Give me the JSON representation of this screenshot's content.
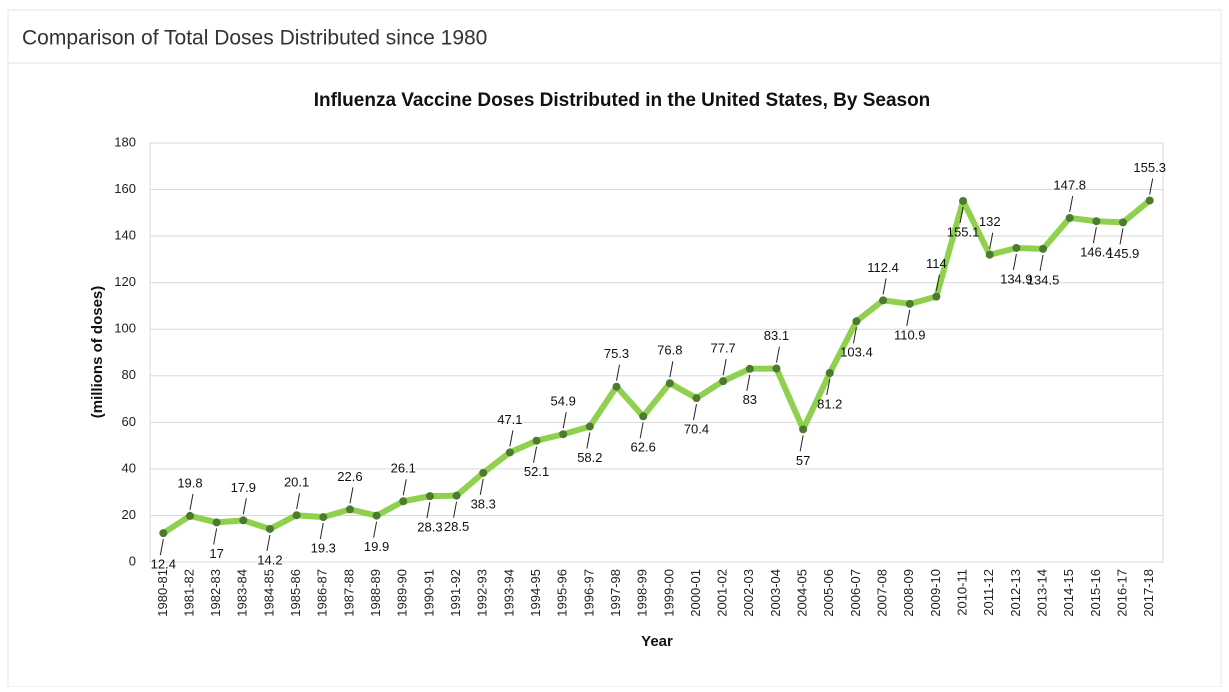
{
  "panel_title": "Comparison of Total Doses Distributed since 1980",
  "chart_data": {
    "type": "line",
    "title": "Influenza Vaccine Doses Distributed in the United States, By Season",
    "x_label": "Year",
    "y_label": "(millions of doses)",
    "categories": [
      "1980-81",
      "1981-82",
      "1982-83",
      "1983-84",
      "1984-85",
      "1985-86",
      "1986-87",
      "1987-88",
      "1988-89",
      "1989-90",
      "1990-91",
      "1991-92",
      "1992-93",
      "1993-94",
      "1994-95",
      "1995-96",
      "1996-97",
      "1997-98",
      "1998-99",
      "1999-00",
      "2000-01",
      "2001-02",
      "2002-03",
      "2003-04",
      "2004-05",
      "2005-06",
      "2006-07",
      "2007-08",
      "2008-09",
      "2009-10",
      "2010-11",
      "2011-12",
      "2012-13",
      "2013-14",
      "2014-15",
      "2015-16",
      "2016-17",
      "2017-18"
    ],
    "series": [
      {
        "name": "Doses",
        "color": "#8fd14f",
        "values": [
          12.4,
          19.8,
          17,
          17.9,
          14.2,
          20.1,
          19.3,
          22.6,
          19.9,
          26.1,
          28.3,
          28.5,
          38.3,
          47.1,
          52.1,
          54.9,
          58.2,
          75.3,
          62.6,
          76.8,
          70.4,
          77.7,
          83,
          83.1,
          57,
          81.2,
          103.4,
          112.4,
          110.9,
          114,
          155.1,
          132,
          134.9,
          134.5,
          147.8,
          146.4,
          145.9,
          155.3
        ]
      }
    ],
    "ylim": [
      0,
      180
    ],
    "yticks": [
      0,
      20,
      40,
      60,
      80,
      100,
      120,
      140,
      160,
      180
    ],
    "grid": true
  }
}
